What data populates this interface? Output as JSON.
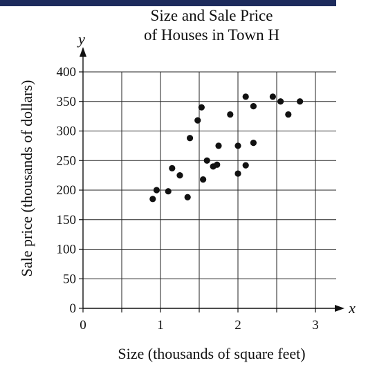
{
  "chart_data": {
    "type": "scatter",
    "title_lines": [
      "Size and Sale Price",
      "of Houses in Town H"
    ],
    "xlabel": "Size (thousands of square feet)",
    "ylabel": "Sale price (thousands of dollars)",
    "x_axis_var": "x",
    "y_axis_var": "y",
    "xlim": [
      0,
      3.2
    ],
    "ylim": [
      0,
      400
    ],
    "x_ticks": [
      0,
      0.5,
      1,
      1.5,
      2,
      2.5,
      3
    ],
    "x_tick_labels": [
      "0",
      "",
      "1",
      "",
      "2",
      "",
      "3"
    ],
    "y_ticks": [
      0,
      50,
      100,
      150,
      200,
      250,
      300,
      350,
      400
    ],
    "y_tick_labels": [
      "0",
      "50",
      "100",
      "150",
      "200",
      "250",
      "300",
      "350",
      "400"
    ],
    "grid": true,
    "point_color": "#111111",
    "x": [
      0.9,
      0.95,
      1.1,
      1.15,
      1.25,
      1.35,
      1.38,
      1.48,
      1.53,
      1.55,
      1.6,
      1.68,
      1.73,
      1.75,
      1.9,
      2.0,
      2.0,
      2.1,
      2.1,
      2.2,
      2.2,
      2.45,
      2.55,
      2.65,
      2.8
    ],
    "y": [
      185,
      200,
      198,
      237,
      225,
      188,
      288,
      318,
      340,
      218,
      250,
      240,
      243,
      275,
      328,
      228,
      275,
      242,
      358,
      280,
      342,
      358,
      350,
      328,
      350
    ]
  }
}
